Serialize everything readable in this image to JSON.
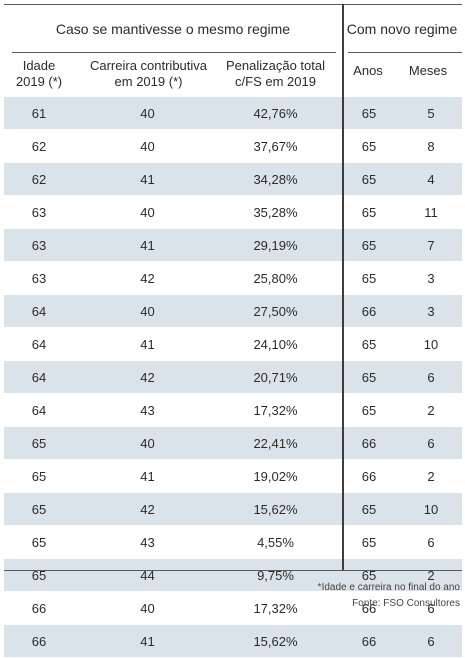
{
  "table": {
    "group_left": "Caso se mantivesse o mesmo regime",
    "group_right": "Com novo regime",
    "headers": [
      [
        "Idade",
        "2019 (*)"
      ],
      [
        "Carreira contributiva",
        "em 2019 (*)"
      ],
      [
        "Penalização total",
        "c/FS em 2019"
      ],
      [
        "Anos"
      ],
      [
        "Meses"
      ]
    ],
    "rows": [
      [
        "61",
        "40",
        "42,76%",
        "65",
        "5"
      ],
      [
        "62",
        "40",
        "37,67%",
        "65",
        "8"
      ],
      [
        "62",
        "41",
        "34,28%",
        "65",
        "4"
      ],
      [
        "63",
        "40",
        "35,28%",
        "65",
        "11"
      ],
      [
        "63",
        "41",
        "29,19%",
        "65",
        "7"
      ],
      [
        "63",
        "42",
        "25,80%",
        "65",
        "3"
      ],
      [
        "64",
        "40",
        "27,50%",
        "66",
        "3"
      ],
      [
        "64",
        "41",
        "24,10%",
        "65",
        "10"
      ],
      [
        "64",
        "42",
        "20,71%",
        "65",
        "6"
      ],
      [
        "64",
        "43",
        "17,32%",
        "65",
        "2"
      ],
      [
        "65",
        "40",
        "22,41%",
        "66",
        "6"
      ],
      [
        "65",
        "41",
        "19,02%",
        "66",
        "2"
      ],
      [
        "65",
        "42",
        "15,62%",
        "65",
        "10"
      ],
      [
        "65",
        "43",
        "4,55%",
        "65",
        "6"
      ],
      [
        "65",
        "44",
        "9,75%",
        "65",
        "2"
      ],
      [
        "66",
        "40",
        "17,32%",
        "66",
        "6"
      ],
      [
        "66",
        "41",
        "15,62%",
        "66",
        "6"
      ]
    ]
  },
  "footnotes": {
    "note": "*Idade e carreira no final do ano",
    "source": "Fonte: FSO Consultores"
  },
  "colors": {
    "stripe": "#dbe3ea",
    "rule": "#5a5a5a",
    "text": "#2b2b2b"
  }
}
